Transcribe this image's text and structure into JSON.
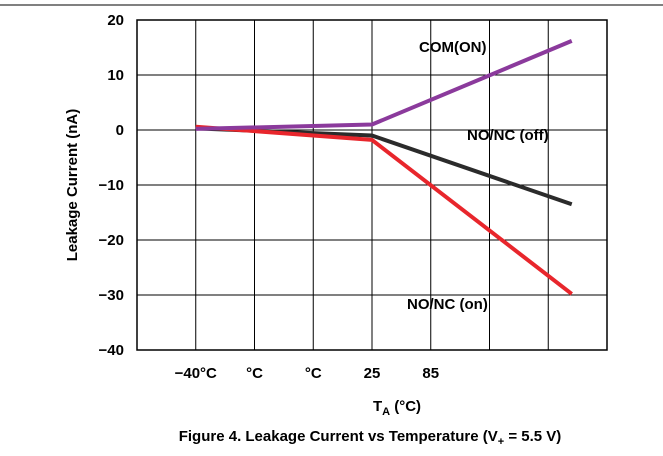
{
  "chart_data": {
    "type": "line",
    "caption": {
      "prefix": "Figure 4. Leakage Current vs Temperature (V",
      "sub": "+",
      "suffix": " = 5.5 V)"
    },
    "ylabel": "Leakage Current (nA)",
    "xlabel": {
      "main": "T",
      "sub": "A",
      "unit": " (°C)"
    },
    "ylim": [
      -40,
      20
    ],
    "yticks": [
      "20",
      "10",
      "0",
      "−10",
      "−20",
      "−30",
      "−40"
    ],
    "ytick_values": [
      20,
      10,
      0,
      -10,
      -20,
      -30,
      -40
    ],
    "xlim": [
      0,
      8
    ],
    "xticks": [
      "−40°C",
      "°C",
      "°C",
      "25",
      "85"
    ],
    "xtick_positions": [
      1,
      2,
      3,
      4,
      5
    ],
    "grid": true,
    "series": [
      {
        "name": "COM(ON)",
        "color": "#8B3A9C",
        "x": [
          1.0,
          4.0,
          7.4
        ],
        "y": [
          0.2,
          1.0,
          16.2
        ]
      },
      {
        "name": "NO/NC (off)",
        "color": "#2B2B2B",
        "x": [
          1.0,
          4.0,
          7.4
        ],
        "y": [
          0.3,
          -1.0,
          -13.5
        ]
      },
      {
        "name": "NO/NC (on)",
        "color": "#E8262C",
        "x": [
          1.0,
          4.0,
          7.4
        ],
        "y": [
          0.6,
          -1.8,
          -29.8
        ]
      }
    ],
    "annotations": [
      "COM(ON)",
      "NO/NC (off)",
      "NO/NC (on)"
    ]
  }
}
